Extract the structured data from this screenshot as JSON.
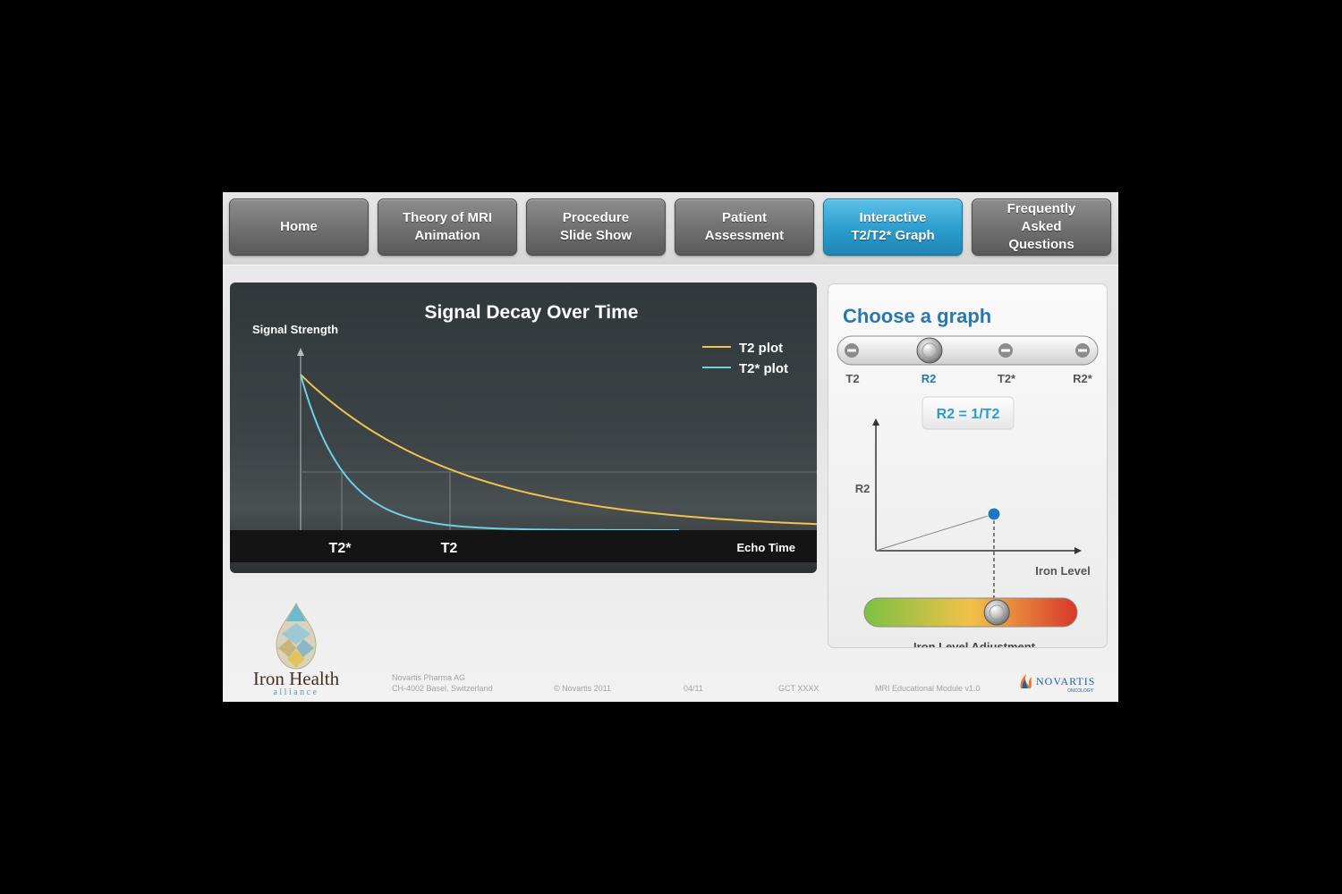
{
  "nav": {
    "items": [
      {
        "label": "Home",
        "active": false
      },
      {
        "label": "Theory of MRI\nAnimation",
        "active": false
      },
      {
        "label": "Procedure\nSlide Show",
        "active": false
      },
      {
        "label": "Patient\nAssessment",
        "active": false
      },
      {
        "label": "Interactive\nT2/T2* Graph",
        "active": true
      },
      {
        "label": "Frequently\nAsked\nQuestions",
        "active": false
      }
    ]
  },
  "chart_data": [
    {
      "type": "line",
      "title": "Signal Decay Over Time",
      "ylabel": "Signal Strength",
      "xlabel": "Echo Time",
      "x_ticks": [
        "T2*",
        "T2"
      ],
      "series": [
        {
          "name": "T2 plot",
          "color": "#f2c24e",
          "decay_constant": 0.37
        },
        {
          "name": "T2* plot",
          "color": "#6fcfe6",
          "decay_constant": 0.1
        }
      ],
      "ylim": [
        0,
        1
      ],
      "xlim": [
        0,
        1.2
      ],
      "legend": "top-right"
    },
    {
      "type": "line",
      "ylabel": "R2",
      "xlabel": "Iron Level",
      "series": [
        {
          "values": [
            [
              0,
              0
            ],
            [
              0.56,
              0.38
            ]
          ]
        }
      ],
      "marker": {
        "x": 0.56,
        "y": 0.38,
        "color": "#1f77c0"
      }
    }
  ],
  "graph_chooser": {
    "title": "Choose a graph",
    "options": [
      "T2",
      "R2",
      "T2*",
      "R2*"
    ],
    "selected": "R2",
    "formula": "R2 = 1/T2"
  },
  "iron_slider": {
    "label": "Iron Level Adjustment",
    "value": 0.62
  },
  "brand": {
    "logo_line1": "Iron Health",
    "logo_line2": "alliance",
    "company": "NOVARTIS",
    "company_sub": "ONCOLOGY"
  },
  "footer": {
    "address": "Novartis Pharma AG\nCH-4002 Basel, Switzerland",
    "copyright": "© Novartis 2011",
    "date": "04/11",
    "code": "GCT XXXX",
    "module": "MRI Educational Module v1.0"
  },
  "colors": {
    "accent": "#2878b0",
    "active_tab": "#2b9ccc",
    "t2_line": "#f2c24e",
    "t2star_line": "#6fcfe6"
  }
}
